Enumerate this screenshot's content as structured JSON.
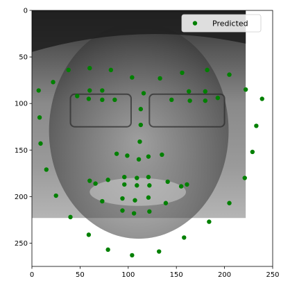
{
  "chart_data": {
    "type": "scatter",
    "title": "",
    "xlabel": "",
    "ylabel": "",
    "xlim": [
      0,
      250
    ],
    "ylim": [
      275,
      0
    ],
    "y_axis_inverted": true,
    "x_ticks": [
      0,
      50,
      100,
      150,
      200,
      250
    ],
    "y_ticks": [
      0,
      50,
      100,
      150,
      200,
      250
    ],
    "background_image": {
      "description": "grayscale face photo",
      "extent_x": [
        0,
        222
      ],
      "extent_y": [
        223,
        0
      ]
    },
    "grid": false,
    "legend": {
      "placement": "upper-right",
      "entries": [
        "Predicted"
      ]
    },
    "series": [
      {
        "name": "Predicted",
        "color": "#008000",
        "marker": "circle",
        "points": [
          {
            "x": 7,
            "y": 86
          },
          {
            "x": 8,
            "y": 115
          },
          {
            "x": 9,
            "y": 143
          },
          {
            "x": 15,
            "y": 171
          },
          {
            "x": 25,
            "y": 199
          },
          {
            "x": 40,
            "y": 222
          },
          {
            "x": 59,
            "y": 241
          },
          {
            "x": 79,
            "y": 257
          },
          {
            "x": 104,
            "y": 263
          },
          {
            "x": 132,
            "y": 259
          },
          {
            "x": 158,
            "y": 244
          },
          {
            "x": 184,
            "y": 227
          },
          {
            "x": 205,
            "y": 207
          },
          {
            "x": 221,
            "y": 180
          },
          {
            "x": 229,
            "y": 152
          },
          {
            "x": 233,
            "y": 124
          },
          {
            "x": 239,
            "y": 95
          },
          {
            "x": 22,
            "y": 77
          },
          {
            "x": 38,
            "y": 64
          },
          {
            "x": 60,
            "y": 62
          },
          {
            "x": 82,
            "y": 64
          },
          {
            "x": 104,
            "y": 72
          },
          {
            "x": 133,
            "y": 73
          },
          {
            "x": 156,
            "y": 67
          },
          {
            "x": 182,
            "y": 64
          },
          {
            "x": 205,
            "y": 69
          },
          {
            "x": 222,
            "y": 85
          },
          {
            "x": 116,
            "y": 89
          },
          {
            "x": 113,
            "y": 106
          },
          {
            "x": 113,
            "y": 123
          },
          {
            "x": 112,
            "y": 141
          },
          {
            "x": 88,
            "y": 154
          },
          {
            "x": 99,
            "y": 156
          },
          {
            "x": 111,
            "y": 160
          },
          {
            "x": 121,
            "y": 157
          },
          {
            "x": 135,
            "y": 155
          },
          {
            "x": 47,
            "y": 92
          },
          {
            "x": 60,
            "y": 86
          },
          {
            "x": 73,
            "y": 86
          },
          {
            "x": 86,
            "y": 96
          },
          {
            "x": 73,
            "y": 96
          },
          {
            "x": 59,
            "y": 95
          },
          {
            "x": 145,
            "y": 96
          },
          {
            "x": 163,
            "y": 87
          },
          {
            "x": 180,
            "y": 87
          },
          {
            "x": 193,
            "y": 94
          },
          {
            "x": 180,
            "y": 97
          },
          {
            "x": 164,
            "y": 97
          },
          {
            "x": 60,
            "y": 183
          },
          {
            "x": 79,
            "y": 182
          },
          {
            "x": 96,
            "y": 179
          },
          {
            "x": 109,
            "y": 180
          },
          {
            "x": 121,
            "y": 179
          },
          {
            "x": 141,
            "y": 184
          },
          {
            "x": 161,
            "y": 187
          },
          {
            "x": 139,
            "y": 207
          },
          {
            "x": 122,
            "y": 216
          },
          {
            "x": 106,
            "y": 218
          },
          {
            "x": 94,
            "y": 215
          },
          {
            "x": 73,
            "y": 205
          },
          {
            "x": 66,
            "y": 186
          },
          {
            "x": 96,
            "y": 187
          },
          {
            "x": 109,
            "y": 188
          },
          {
            "x": 122,
            "y": 188
          },
          {
            "x": 155,
            "y": 189
          },
          {
            "x": 121,
            "y": 201
          },
          {
            "x": 107,
            "y": 204
          },
          {
            "x": 94,
            "y": 202
          }
        ]
      }
    ]
  }
}
